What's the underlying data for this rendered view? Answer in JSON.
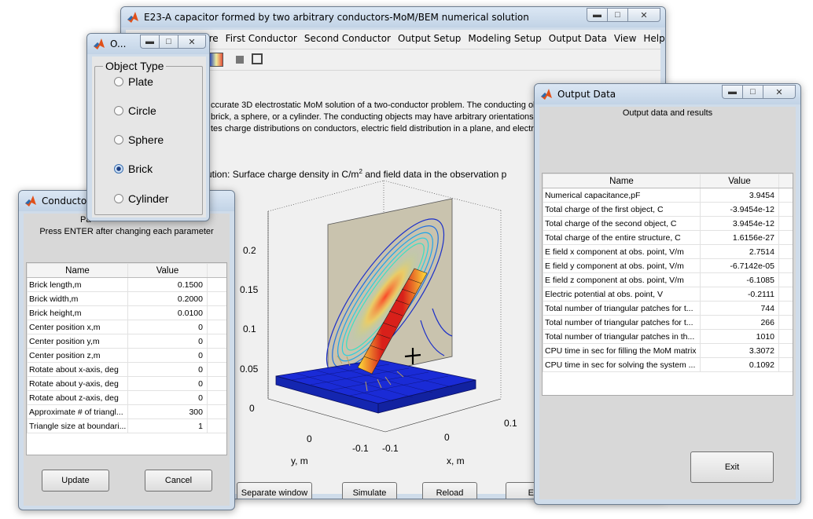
{
  "main_window": {
    "title": "E23-A capacitor formed by two arbitrary conductors-MoM/BEM numerical solution",
    "menu": [
      "ure",
      "First Conductor",
      "Second Conductor",
      "Output Setup",
      "Modeling Setup",
      "Output Data",
      "View",
      "Help"
    ],
    "menu_overflow": "↘",
    "description": [
      "ccurate 3D electrostatic MoM solution of a two-conductor problem. The conducting ob",
      "brick, a sphere, or a cylinder. The conducting objects may have arbitrary orientations",
      "tes charge distributions on conductors, electric field distribution in a plane, and electri"
    ],
    "plot_title": "ution: Surface charge density in C/m",
    "plot_title_sup": "2",
    "plot_title_tail": " and field data in the observation p",
    "z_ticks": [
      "0.2",
      "0.15",
      "0.1",
      "0.05",
      "0"
    ],
    "y_ticks": [
      "0",
      "-0.1"
    ],
    "x_ticks": [
      "0.1",
      "0",
      "-0.1"
    ],
    "ylabel": "y, m",
    "xlabel": "x, m",
    "buttons": {
      "separate": "Separate window",
      "simulate": "Simulate",
      "reload": "Reload",
      "exit_partial": "Ex"
    }
  },
  "object_window": {
    "title": "O...",
    "group_label": "Object Type",
    "options": [
      "Plate",
      "Circle",
      "Sphere",
      "Brick",
      "Cylinder"
    ],
    "selected": "Brick"
  },
  "conductor_window": {
    "title": "Conductor",
    "header_partial": "Pa",
    "instruction": "Press ENTER after changing each parameter",
    "columns": [
      "Name",
      "Value"
    ],
    "rows": [
      {
        "name": "Brick length,m",
        "value": "0.1500"
      },
      {
        "name": "Brick width,m",
        "value": "0.2000"
      },
      {
        "name": "Brick height,m",
        "value": "0.0100"
      },
      {
        "name": "Center position x,m",
        "value": "0"
      },
      {
        "name": "Center position y,m",
        "value": "0"
      },
      {
        "name": "Center position z,m",
        "value": "0"
      },
      {
        "name": "Rotate about x-axis, deg",
        "value": "0"
      },
      {
        "name": "Rotate about y-axis, deg",
        "value": "0"
      },
      {
        "name": "Rotate about z-axis, deg",
        "value": "0"
      },
      {
        "name": "Approximate # of triangl...",
        "value": "300"
      },
      {
        "name": "Triangle size at boundari...",
        "value": "1"
      }
    ],
    "update_label": "Update",
    "cancel_label": "Cancel"
  },
  "output_window": {
    "title": "Output Data",
    "heading": "Output data and results",
    "columns": [
      "Name",
      "Value"
    ],
    "rows": [
      {
        "name": "Numerical capacitance,pF",
        "value": "3.9454"
      },
      {
        "name": "Total charge of the first object, C",
        "value": "-3.9454e-12"
      },
      {
        "name": "Total charge of the second object, C",
        "value": "3.9454e-12"
      },
      {
        "name": "Total charge of the entire structure, C",
        "value": "1.6156e-27"
      },
      {
        "name": "E field x component at obs. point, V/m",
        "value": "2.7514"
      },
      {
        "name": "E field y component at obs. point, V/m",
        "value": "-6.7142e-05"
      },
      {
        "name": "E field z component at obs. point, V/m",
        "value": "-6.1085"
      },
      {
        "name": "Electric potential at obs. point, V",
        "value": "-0.2111"
      },
      {
        "name": "Total number of triangular patches for t...",
        "value": "744"
      },
      {
        "name": "Total number of triangular patches for t...",
        "value": "266"
      },
      {
        "name": "Total number of triangular patches in th...",
        "value": "1010"
      },
      {
        "name": "CPU time in sec for filling the MoM matrix",
        "value": "3.3072"
      },
      {
        "name": "CPU time in sec for solving the system ...",
        "value": "0.1092"
      }
    ],
    "exit_label": "Exit"
  }
}
